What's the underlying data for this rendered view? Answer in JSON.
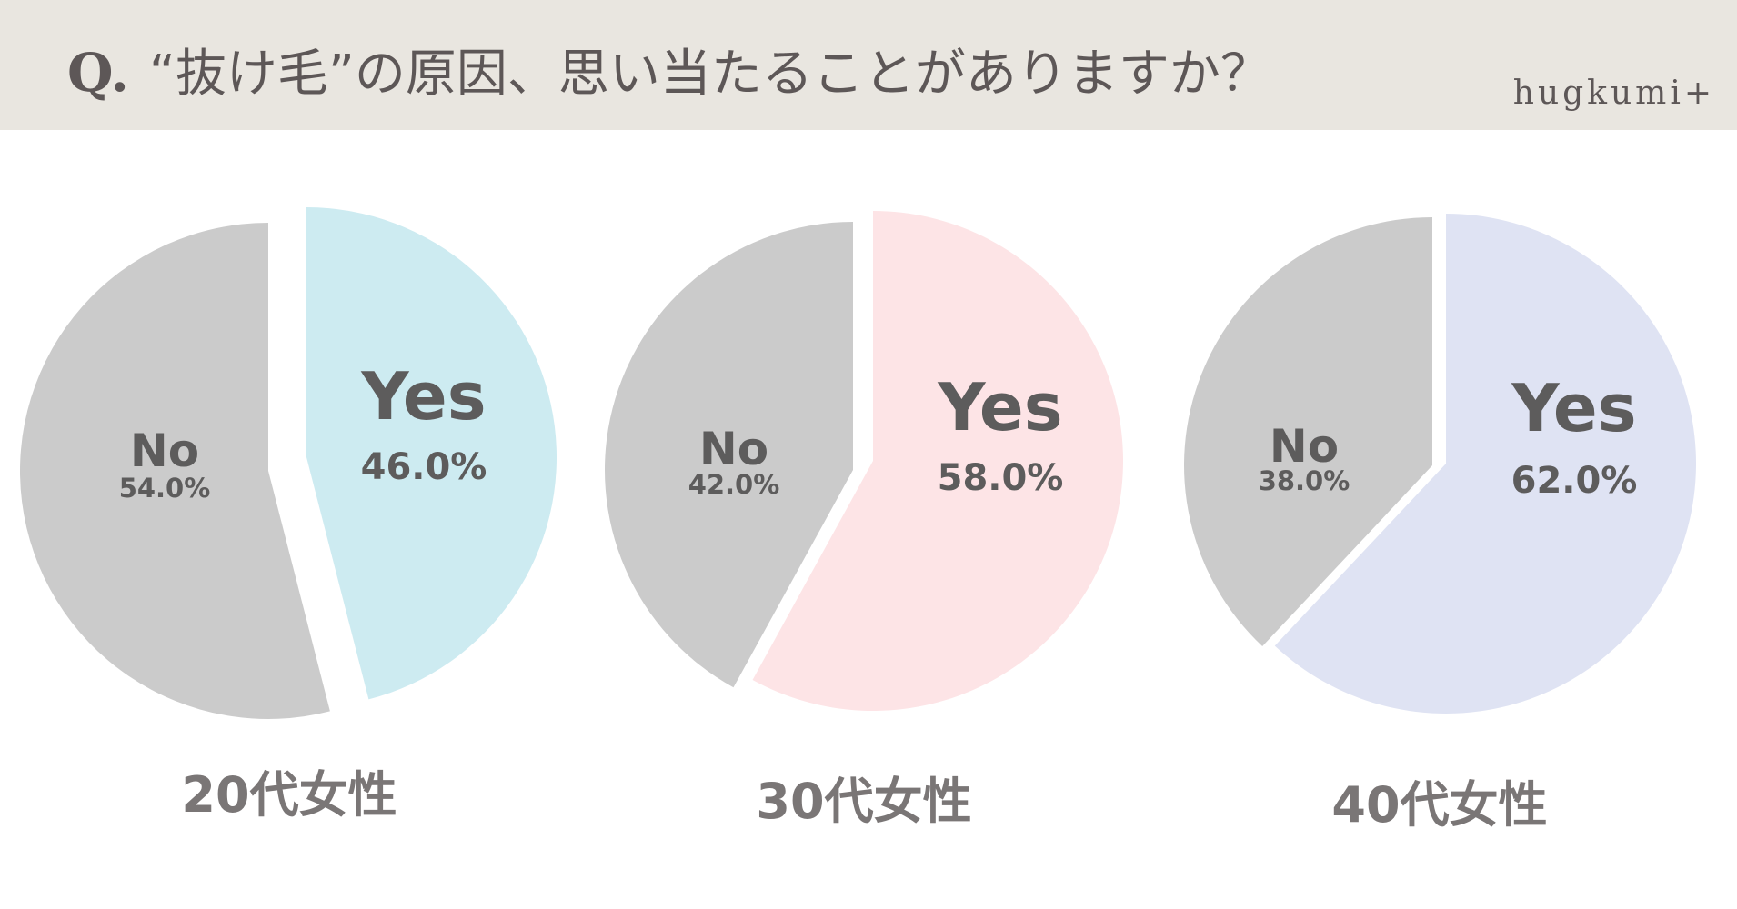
{
  "header": {
    "q_mark": "Q.",
    "question": "“抜け毛”の原因、思い当たることがありますか？",
    "brand": "hugkumi+"
  },
  "colors": {
    "header_bg": "#e9e6e0",
    "no": "#cbcbcb",
    "yes_20s": "#cdebf1",
    "yes_30s": "#fde4e6",
    "yes_40s": "#dfe3f3",
    "label_text": "#5d5c5c",
    "group_text": "#7a7676"
  },
  "chart_data": [
    {
      "type": "pie",
      "group_label": "20代女性",
      "slices": [
        {
          "label": "Yes",
          "value": 46.0,
          "value_label": "46.0%",
          "color": "#cdebf1"
        },
        {
          "label": "No",
          "value": 54.0,
          "value_label": "54.0%",
          "color": "#cbcbcb"
        }
      ]
    },
    {
      "type": "pie",
      "group_label": "30代女性",
      "slices": [
        {
          "label": "Yes",
          "value": 58.0,
          "value_label": "58.0%",
          "color": "#fde4e6"
        },
        {
          "label": "No",
          "value": 42.0,
          "value_label": "42.0%",
          "color": "#cbcbcb"
        }
      ]
    },
    {
      "type": "pie",
      "group_label": "40代女性",
      "slices": [
        {
          "label": "Yes",
          "value": 62.0,
          "value_label": "62.0%",
          "color": "#dfe3f3"
        },
        {
          "label": "No",
          "value": 38.0,
          "value_label": "38.0%",
          "color": "#cbcbcb"
        }
      ]
    }
  ]
}
